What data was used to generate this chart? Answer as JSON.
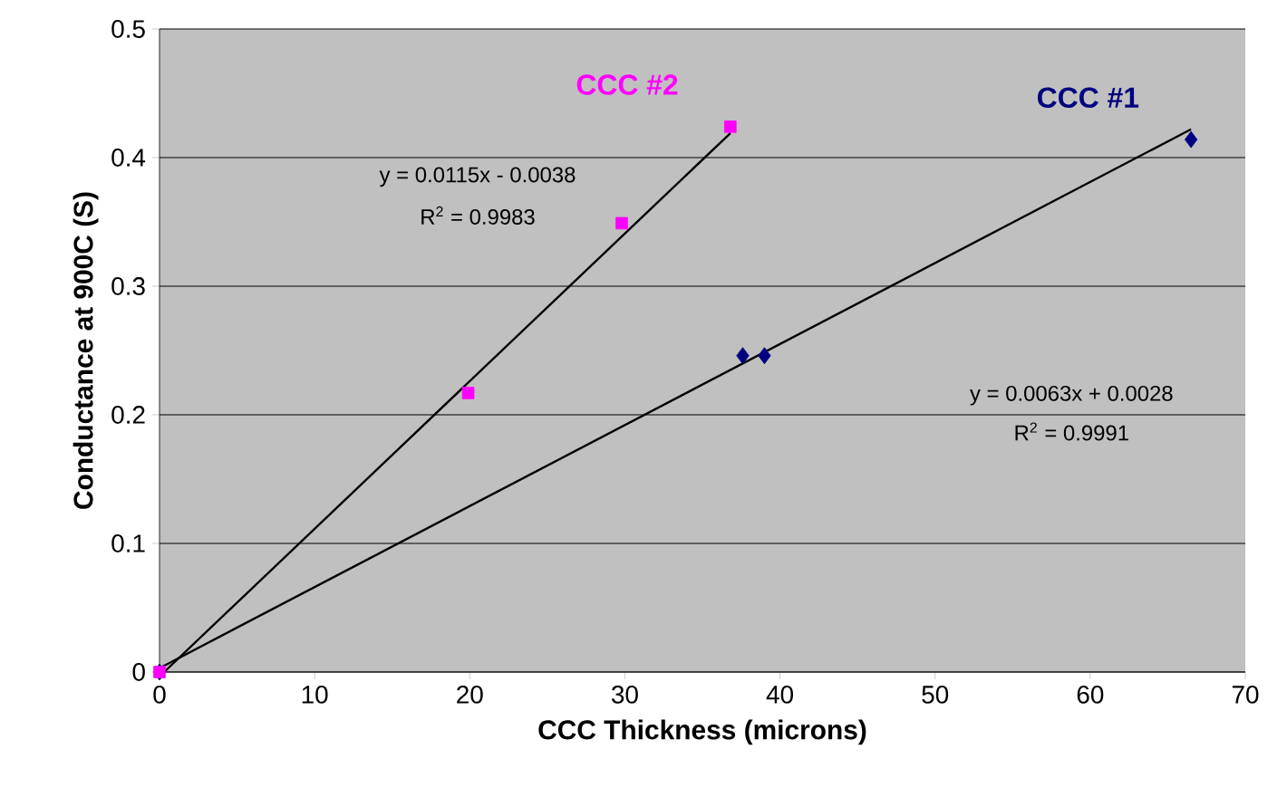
{
  "chart_data": {
    "type": "scatter",
    "xlabel": "CCC Thickness (microns)",
    "ylabel": "Conductance at 900C (S)",
    "xlim": [
      0,
      70
    ],
    "xticks": [
      0,
      10,
      20,
      30,
      40,
      50,
      60,
      70
    ],
    "ylim": [
      0,
      0.5
    ],
    "yticks": [
      0,
      0.1,
      0.2,
      0.3,
      0.4,
      0.5
    ],
    "grid": "y",
    "series": [
      {
        "name": "CCC #1",
        "marker": "diamond",
        "color": "#000080",
        "x": [
          0,
          37.6,
          39.0,
          66.5
        ],
        "values": [
          0,
          0.246,
          0.246,
          0.414
        ]
      },
      {
        "name": "CCC #2",
        "marker": "square",
        "color": "#ff00ff",
        "x": [
          0,
          19.9,
          29.8,
          36.8
        ],
        "values": [
          0,
          0.217,
          0.349,
          0.424
        ]
      },
      {
        "type": "line",
        "color": "#000000",
        "x": [
          0,
          66.5
        ],
        "values": [
          0.003,
          0.422
        ]
      },
      {
        "type": "line",
        "color": "#000000",
        "x": [
          0.3,
          36.8
        ],
        "values": [
          0,
          0.419
        ]
      }
    ],
    "annotations": [
      "y = 0.0115x - 0.0038",
      "R$^{2}$ = 0.9983",
      "y = 0.0063x + 0.0028",
      "R$^{2}$ = 0.9991"
    ]
  }
}
